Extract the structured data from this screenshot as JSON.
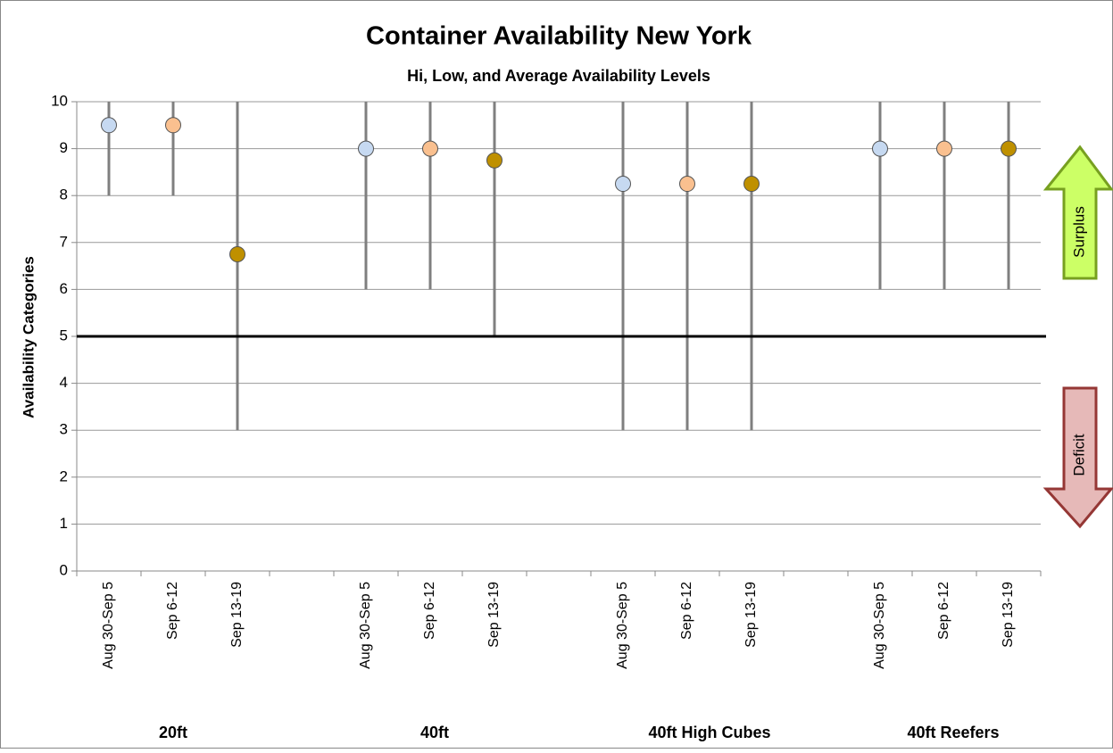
{
  "chart_data": {
    "type": "hilo",
    "title": "Container  Availability  New York",
    "subtitle": "Hi, Low, and Average Availability Levels",
    "y_label": "Availability  Categories",
    "categories": [
      "Aug 30-Sep 5",
      "Sep 6-12",
      "Sep 13-19",
      null,
      "Aug 30-Sep 5",
      "Sep 6-12",
      "Sep 13-19",
      null,
      "Aug 30-Sep 5",
      "Sep 6-12",
      "Sep 13-19",
      null,
      "Aug 30-Sep 5",
      "Sep 6-12",
      "Sep 13-19"
    ],
    "high": [
      10,
      10,
      10,
      null,
      10,
      10,
      10,
      null,
      10,
      10,
      10,
      null,
      10,
      10,
      10
    ],
    "low": [
      8,
      8,
      3,
      null,
      6,
      6,
      5,
      null,
      3,
      3,
      3,
      null,
      6,
      6,
      6
    ],
    "average": [
      9.5,
      9.5,
      6.75,
      null,
      9,
      9,
      8.75,
      null,
      8.25,
      8.25,
      8.25,
      null,
      9,
      9,
      9
    ],
    "colors": [
      "#c6d9f1",
      "#fac08f",
      "#bf9000",
      null,
      "#c6d9f1",
      "#fac08f",
      "#bf9000",
      null,
      "#c6d9f1",
      "#fac08f",
      "#bf9000",
      null,
      "#c6d9f1",
      "#fac08f",
      "#bf9000"
    ],
    "groups": [
      "20ft",
      "40ft",
      "40ft High Cubes",
      "40ft  Reefers"
    ],
    "reference_line": 5,
    "annotations": [
      "Surplus",
      "Deficit"
    ],
    "ylim": [
      0,
      10
    ],
    "yticks": [
      0,
      1,
      2,
      3,
      4,
      5,
      6,
      7,
      8,
      9,
      10
    ],
    "grid": true
  }
}
